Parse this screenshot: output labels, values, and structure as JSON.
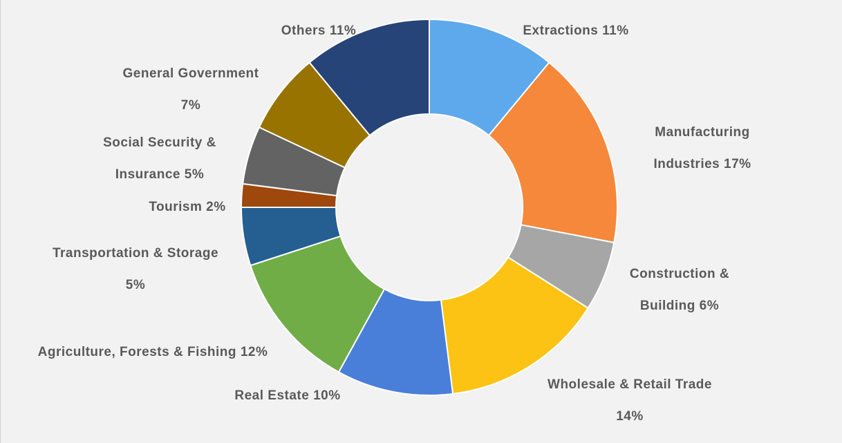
{
  "chart_data": {
    "type": "donut",
    "categories": [
      "Extractions",
      "Manufacturing Industries",
      "Construction & Building",
      "Wholesale & Retail Trade",
      "Real Estate",
      "Agriculture, Forests & Fishing",
      "Transportation & Storage",
      "Tourism",
      "Social Security & Insurance",
      "General Government",
      "Others"
    ],
    "values": [
      11,
      17,
      6,
      14,
      10,
      12,
      5,
      2,
      5,
      7,
      11
    ],
    "value_labels": [
      "11%",
      "17%",
      "6%",
      "14%",
      "10%",
      "12%",
      "5%",
      "2%",
      "5%",
      "7%",
      "11%"
    ],
    "colors": [
      "#5ea9ec",
      "#f5883a",
      "#a6a6a6",
      "#fcc314",
      "#4a7fd9",
      "#70ad47",
      "#255e91",
      "#9e480e",
      "#636363",
      "#997300",
      "#264478"
    ]
  }
}
